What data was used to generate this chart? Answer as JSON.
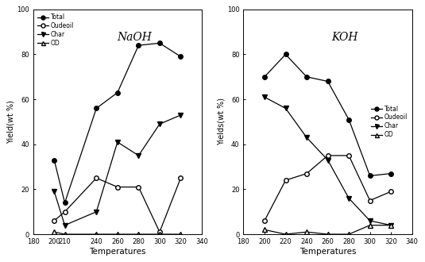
{
  "naoh": {
    "title": "NaOH",
    "temperatures": [
      200,
      210,
      240,
      260,
      280,
      300,
      320
    ],
    "total": [
      33,
      14,
      56,
      63,
      84,
      85,
      79
    ],
    "oudeoil": [
      6,
      10,
      25,
      21,
      21,
      1,
      25
    ],
    "char": [
      19,
      4,
      10,
      41,
      35,
      49,
      53
    ],
    "od": [
      1,
      0,
      0,
      0,
      0,
      0,
      0
    ],
    "ylabel": "Yield(wt %)"
  },
  "koh": {
    "title": "KOH",
    "temperatures": [
      200,
      220,
      240,
      260,
      280,
      300,
      320
    ],
    "total": [
      70,
      80,
      70,
      68,
      51,
      26,
      27
    ],
    "oudeoil": [
      6,
      24,
      27,
      35,
      35,
      15,
      19
    ],
    "char": [
      61,
      56,
      43,
      33,
      16,
      6,
      4
    ],
    "od": [
      2,
      0,
      1,
      0,
      0,
      4,
      4
    ],
    "ylabel": "Yields(wt %)"
  },
  "xlabel": "Temperatures",
  "ylim": [
    0,
    100
  ],
  "yticks": [
    0,
    20,
    40,
    60,
    80,
    100
  ],
  "naoh_xticks": [
    180,
    200,
    210,
    240,
    260,
    280,
    300,
    320,
    340
  ],
  "koh_xticks": [
    180,
    200,
    220,
    240,
    260,
    280,
    300,
    320,
    340
  ],
  "naoh_xticklabels": [
    "180",
    "200",
    "210",
    "240",
    "260",
    "280",
    "300",
    "320",
    "340"
  ],
  "koh_xticklabels": [
    "180",
    "200",
    "220",
    "240",
    "260",
    "280",
    "300",
    "320",
    "340"
  ],
  "legend_labels": [
    "Total",
    "Oudeoil",
    "Char",
    "OD"
  ],
  "line_color": "#000000",
  "naoh_legend_loc": "upper left",
  "koh_legend_loc": "center right"
}
